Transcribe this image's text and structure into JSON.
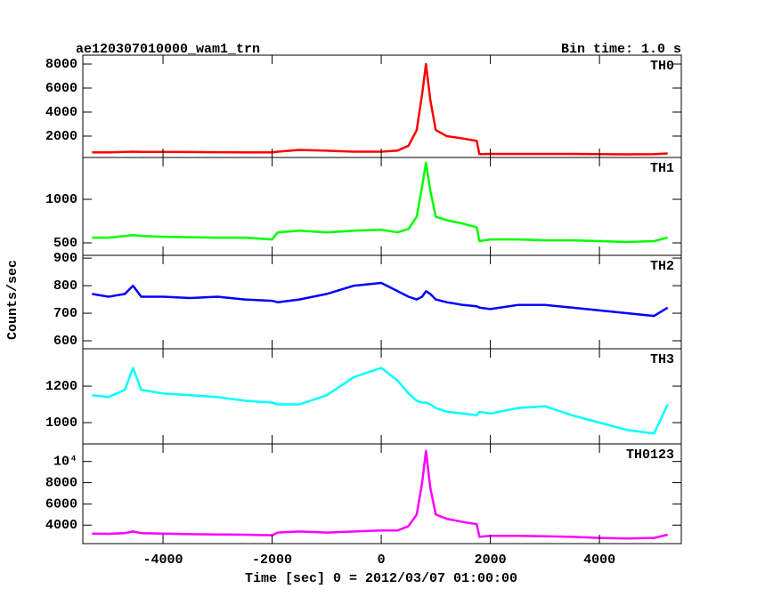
{
  "title": "ae120307010000_wam1_trn",
  "subtitle": "Bin time: 1.0 s",
  "ylabel": "Counts/sec",
  "xlabel": "Time [sec] 0 = 2012/03/07 01:00:00",
  "chart_data": [
    {
      "type": "line",
      "x": [
        -5300,
        -5000,
        -4700,
        -4550,
        -4400,
        -4000,
        -3500,
        -3000,
        -2500,
        -2000,
        -1900,
        -1500,
        -1000,
        -500,
        0,
        300,
        500,
        650,
        750,
        820,
        900,
        1000,
        1200,
        1500,
        1750,
        1800,
        2000,
        2500,
        3000,
        3500,
        4000,
        4500,
        5000,
        5250
      ],
      "series": [
        {
          "name": "TH0",
          "color": "#ff0000",
          "values": [
            650,
            650,
            680,
            700,
            690,
            680,
            670,
            660,
            650,
            640,
            700,
            850,
            780,
            700,
            700,
            800,
            1200,
            2500,
            5500,
            8000,
            5000,
            2500,
            2000,
            1800,
            1600,
            500,
            520,
            520,
            520,
            520,
            500,
            480,
            500,
            550
          ]
        }
      ],
      "xlim": [
        -5470,
        5500
      ],
      "xticks": [
        -4000,
        -2000,
        0,
        2000,
        4000
      ],
      "ylim": [
        220,
        8740
      ],
      "yticks": [
        2000,
        4000,
        6000,
        8000
      ]
    },
    {
      "type": "line",
      "x": [
        -5300,
        -5000,
        -4700,
        -4550,
        -4400,
        -4000,
        -3500,
        -3000,
        -2500,
        -2000,
        -1900,
        -1500,
        -1000,
        -500,
        0,
        300,
        500,
        650,
        750,
        820,
        900,
        1000,
        1200,
        1500,
        1750,
        1800,
        2000,
        2500,
        3000,
        3500,
        4000,
        4500,
        5000,
        5250
      ],
      "series": [
        {
          "name": "TH1",
          "color": "#00ff00",
          "values": [
            560,
            560,
            580,
            590,
            580,
            570,
            565,
            560,
            560,
            540,
            620,
            640,
            620,
            640,
            650,
            620,
            660,
            800,
            1150,
            1420,
            1100,
            800,
            760,
            720,
            680,
            520,
            540,
            540,
            530,
            530,
            520,
            510,
            520,
            560
          ]
        }
      ],
      "xlim": [
        -5470,
        5500
      ],
      "xticks": [
        -4000,
        -2000,
        0,
        2000,
        4000
      ],
      "ylim": [
        357,
        1480
      ],
      "yticks": [
        500,
        1000
      ]
    },
    {
      "type": "line",
      "x": [
        -5300,
        -5000,
        -4700,
        -4550,
        -4400,
        -4000,
        -3500,
        -3000,
        -2500,
        -2000,
        -1900,
        -1500,
        -1000,
        -500,
        0,
        300,
        500,
        650,
        750,
        820,
        900,
        1000,
        1200,
        1500,
        1750,
        1800,
        2000,
        2500,
        3000,
        3500,
        4000,
        4500,
        5000,
        5250
      ],
      "series": [
        {
          "name": "TH2",
          "color": "#0000ff",
          "values": [
            770,
            760,
            770,
            800,
            760,
            760,
            755,
            760,
            750,
            745,
            740,
            750,
            770,
            800,
            810,
            780,
            760,
            750,
            760,
            780,
            770,
            750,
            740,
            730,
            725,
            720,
            715,
            730,
            730,
            720,
            710,
            700,
            690,
            720
          ]
        }
      ],
      "xlim": [
        -5470,
        5500
      ],
      "xticks": [
        -4000,
        -2000,
        0,
        2000,
        4000
      ],
      "ylim": [
        571,
        910
      ],
      "yticks": [
        600,
        700,
        800,
        900
      ]
    },
    {
      "type": "line",
      "x": [
        -5300,
        -5000,
        -4700,
        -4550,
        -4400,
        -4000,
        -3500,
        -3000,
        -2500,
        -2000,
        -1900,
        -1500,
        -1000,
        -500,
        0,
        300,
        500,
        650,
        750,
        820,
        900,
        1000,
        1200,
        1500,
        1750,
        1800,
        2000,
        2500,
        3000,
        3500,
        4000,
        4500,
        5000,
        5250
      ],
      "series": [
        {
          "name": "TH3",
          "color": "#00ffff",
          "values": [
            1150,
            1140,
            1180,
            1300,
            1180,
            1160,
            1150,
            1140,
            1120,
            1110,
            1100,
            1100,
            1150,
            1250,
            1300,
            1230,
            1160,
            1120,
            1110,
            1110,
            1100,
            1080,
            1060,
            1050,
            1040,
            1060,
            1050,
            1080,
            1090,
            1040,
            1000,
            960,
            940,
            1100
          ]
        }
      ],
      "xlim": [
        -5470,
        5500
      ],
      "xticks": [
        -4000,
        -2000,
        0,
        2000,
        4000
      ],
      "ylim": [
        883,
        1405
      ],
      "yticks": [
        1000,
        1200
      ]
    },
    {
      "type": "line",
      "x": [
        -5300,
        -5000,
        -4700,
        -4550,
        -4400,
        -4000,
        -3500,
        -3000,
        -2500,
        -2000,
        -1900,
        -1500,
        -1000,
        -500,
        0,
        300,
        500,
        650,
        750,
        820,
        900,
        1000,
        1200,
        1500,
        1750,
        1800,
        2000,
        2500,
        3000,
        3500,
        4000,
        4500,
        5000,
        5250
      ],
      "series": [
        {
          "name": "TH0123",
          "color": "#ff00ff",
          "values": [
            3200,
            3180,
            3250,
            3400,
            3250,
            3200,
            3150,
            3120,
            3100,
            3050,
            3300,
            3400,
            3300,
            3400,
            3500,
            3500,
            3900,
            5000,
            8000,
            11000,
            7500,
            5000,
            4600,
            4300,
            4100,
            2900,
            3000,
            3000,
            2950,
            2900,
            2800,
            2750,
            2800,
            3100
          ]
        }
      ],
      "xlim": [
        -5470,
        5500
      ],
      "xticks": [
        -4000,
        -2000,
        0,
        2000,
        4000
      ],
      "ylim": [
        2260,
        11650
      ],
      "yticks": [
        4000,
        6000,
        8000,
        {
          "value": 10000,
          "label": "10⁴"
        }
      ]
    }
  ]
}
